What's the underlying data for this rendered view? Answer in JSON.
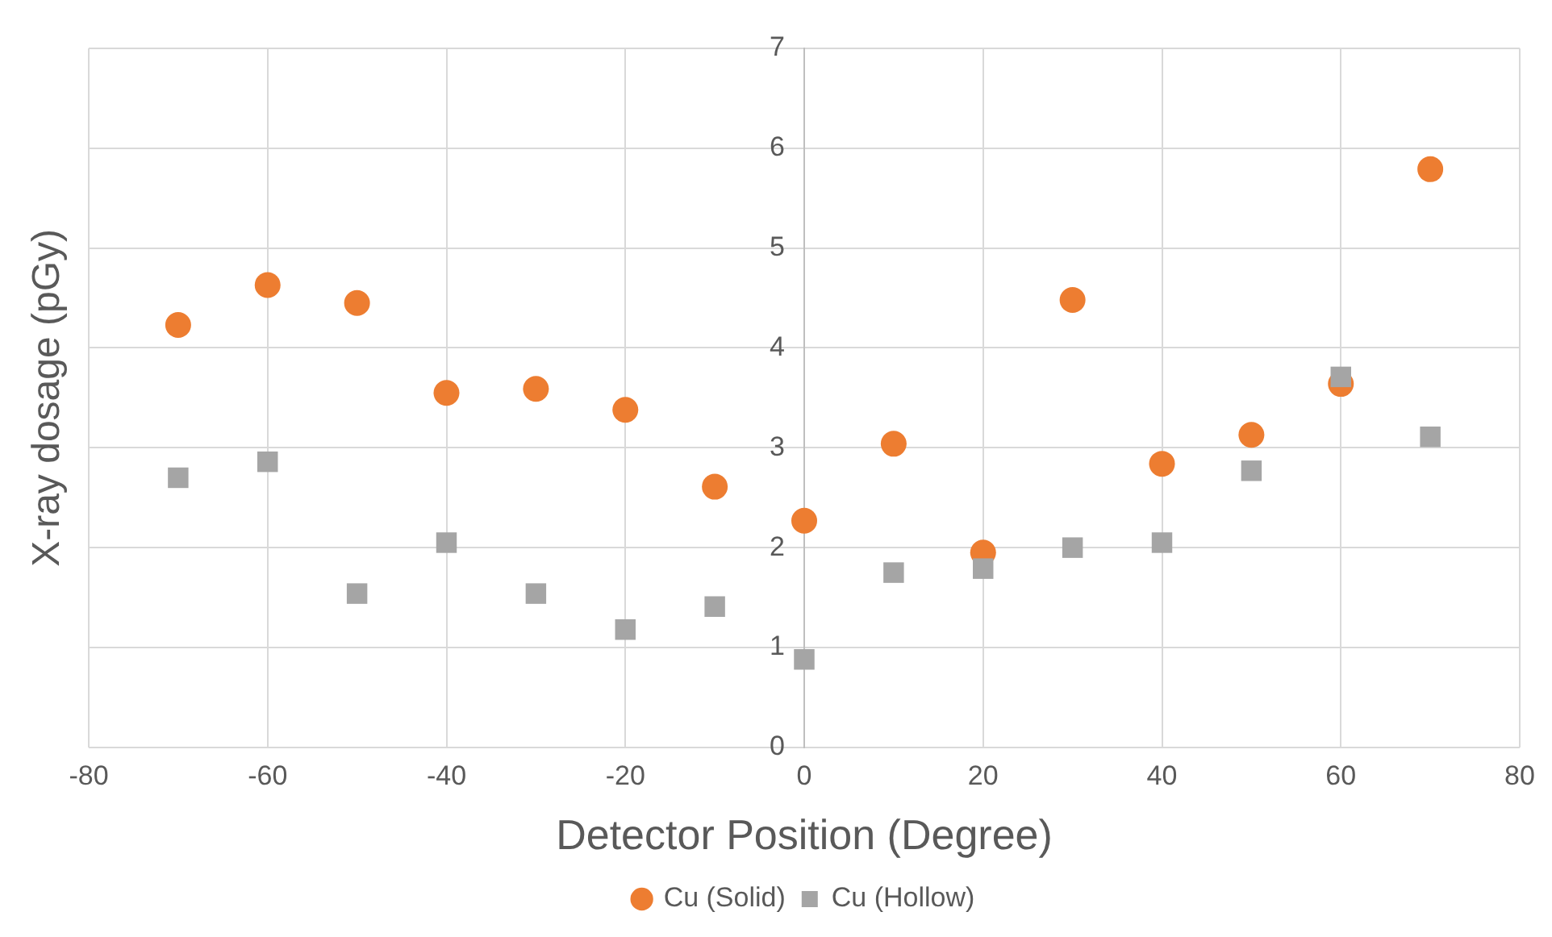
{
  "chart_data": {
    "type": "scatter",
    "xlabel": "Detector Position (Degree)",
    "ylabel": "X-ray dosage (pGy)",
    "x": [
      -70,
      -60,
      -50,
      -40,
      -30,
      -20,
      -10,
      0,
      10,
      20,
      30,
      40,
      50,
      60,
      70
    ],
    "series": [
      {
        "name": "Cu (Solid)",
        "color": "#ed7d31",
        "marker": "circle",
        "values": [
          4.23,
          4.63,
          4.45,
          3.55,
          3.59,
          3.38,
          2.61,
          2.27,
          3.04,
          1.95,
          4.48,
          2.84,
          3.13,
          3.64,
          5.79
        ]
      },
      {
        "name": "Cu (Hollow)",
        "color": "#a5a5a5",
        "marker": "square",
        "values": [
          2.7,
          2.86,
          1.54,
          2.05,
          1.54,
          1.18,
          1.41,
          0.88,
          1.75,
          1.79,
          2.0,
          2.05,
          2.77,
          3.71,
          3.11
        ]
      }
    ],
    "xlim": [
      -80,
      80
    ],
    "xticks": [
      -80,
      -60,
      -40,
      -20,
      0,
      20,
      40,
      60,
      80
    ],
    "ylim": [
      0,
      7
    ],
    "yticks": [
      0,
      1,
      2,
      3,
      4,
      5,
      6,
      7
    ],
    "grid": true,
    "legend": "bottom"
  }
}
